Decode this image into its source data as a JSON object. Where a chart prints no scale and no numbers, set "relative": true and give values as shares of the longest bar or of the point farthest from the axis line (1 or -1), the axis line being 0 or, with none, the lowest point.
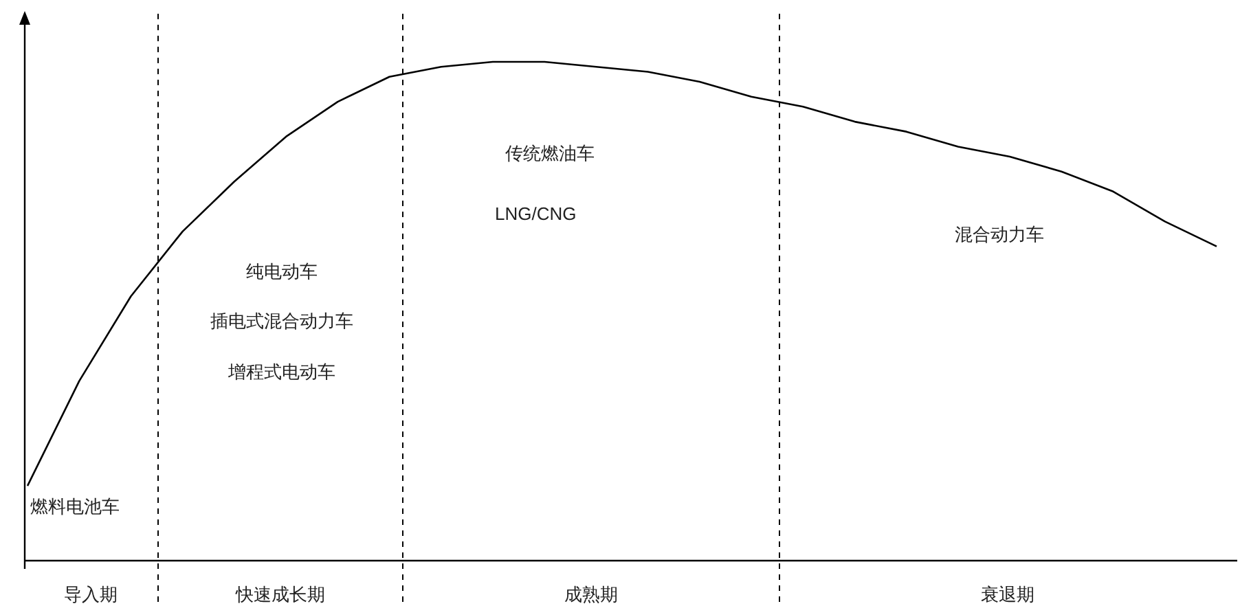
{
  "chart_data": {
    "type": "line",
    "relative": true,
    "categories": [
      null,
      null,
      null,
      null,
      null,
      null,
      null,
      null,
      null,
      null,
      null,
      null,
      null,
      null,
      null,
      null,
      null,
      null,
      null,
      null,
      null,
      null,
      null,
      null
    ],
    "series": [
      {
        "color": "#000000",
        "values": [
          0.15,
          0.36,
          0.53,
          0.66,
          0.76,
          0.85,
          0.92,
          0.97,
          0.99,
          1,
          1,
          0.99,
          0.98,
          0.96,
          0.93,
          0.91,
          0.88,
          0.86,
          0.83,
          0.81,
          0.78,
          0.74,
          0.68,
          0.63
        ]
      }
    ],
    "annotations": [
      "燃料电池车",
      "纯电动车",
      "插电式混合动力车",
      "增程式电动车",
      "传统燃油车",
      "LNG/CNG",
      "混合动力车",
      "导入期",
      "快速成长期",
      "成熟期",
      "衰退期"
    ]
  }
}
